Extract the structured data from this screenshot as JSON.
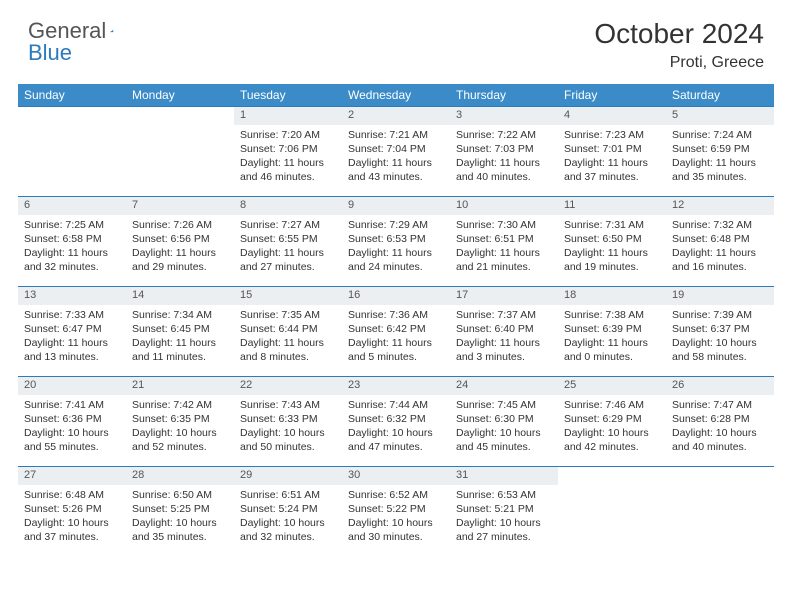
{
  "logo": {
    "general": "General",
    "blue": "Blue"
  },
  "title": "October 2024",
  "location": "Proti, Greece",
  "colors": {
    "header_bg": "#3b8bc8",
    "header_text": "#ffffff",
    "daynum_bg": "#eceff1",
    "daynum_text": "#555555",
    "border": "#2b7bbd",
    "body_text": "#333333",
    "logo_gray": "#555555",
    "logo_blue": "#2b7bbd"
  },
  "weekdays": [
    "Sunday",
    "Monday",
    "Tuesday",
    "Wednesday",
    "Thursday",
    "Friday",
    "Saturday"
  ],
  "weeks": [
    [
      null,
      null,
      {
        "n": "1",
        "sr": "7:20 AM",
        "ss": "7:06 PM",
        "dl": "11 hours and 46 minutes."
      },
      {
        "n": "2",
        "sr": "7:21 AM",
        "ss": "7:04 PM",
        "dl": "11 hours and 43 minutes."
      },
      {
        "n": "3",
        "sr": "7:22 AM",
        "ss": "7:03 PM",
        "dl": "11 hours and 40 minutes."
      },
      {
        "n": "4",
        "sr": "7:23 AM",
        "ss": "7:01 PM",
        "dl": "11 hours and 37 minutes."
      },
      {
        "n": "5",
        "sr": "7:24 AM",
        "ss": "6:59 PM",
        "dl": "11 hours and 35 minutes."
      }
    ],
    [
      {
        "n": "6",
        "sr": "7:25 AM",
        "ss": "6:58 PM",
        "dl": "11 hours and 32 minutes."
      },
      {
        "n": "7",
        "sr": "7:26 AM",
        "ss": "6:56 PM",
        "dl": "11 hours and 29 minutes."
      },
      {
        "n": "8",
        "sr": "7:27 AM",
        "ss": "6:55 PM",
        "dl": "11 hours and 27 minutes."
      },
      {
        "n": "9",
        "sr": "7:29 AM",
        "ss": "6:53 PM",
        "dl": "11 hours and 24 minutes."
      },
      {
        "n": "10",
        "sr": "7:30 AM",
        "ss": "6:51 PM",
        "dl": "11 hours and 21 minutes."
      },
      {
        "n": "11",
        "sr": "7:31 AM",
        "ss": "6:50 PM",
        "dl": "11 hours and 19 minutes."
      },
      {
        "n": "12",
        "sr": "7:32 AM",
        "ss": "6:48 PM",
        "dl": "11 hours and 16 minutes."
      }
    ],
    [
      {
        "n": "13",
        "sr": "7:33 AM",
        "ss": "6:47 PM",
        "dl": "11 hours and 13 minutes."
      },
      {
        "n": "14",
        "sr": "7:34 AM",
        "ss": "6:45 PM",
        "dl": "11 hours and 11 minutes."
      },
      {
        "n": "15",
        "sr": "7:35 AM",
        "ss": "6:44 PM",
        "dl": "11 hours and 8 minutes."
      },
      {
        "n": "16",
        "sr": "7:36 AM",
        "ss": "6:42 PM",
        "dl": "11 hours and 5 minutes."
      },
      {
        "n": "17",
        "sr": "7:37 AM",
        "ss": "6:40 PM",
        "dl": "11 hours and 3 minutes."
      },
      {
        "n": "18",
        "sr": "7:38 AM",
        "ss": "6:39 PM",
        "dl": "11 hours and 0 minutes."
      },
      {
        "n": "19",
        "sr": "7:39 AM",
        "ss": "6:37 PM",
        "dl": "10 hours and 58 minutes."
      }
    ],
    [
      {
        "n": "20",
        "sr": "7:41 AM",
        "ss": "6:36 PM",
        "dl": "10 hours and 55 minutes."
      },
      {
        "n": "21",
        "sr": "7:42 AM",
        "ss": "6:35 PM",
        "dl": "10 hours and 52 minutes."
      },
      {
        "n": "22",
        "sr": "7:43 AM",
        "ss": "6:33 PM",
        "dl": "10 hours and 50 minutes."
      },
      {
        "n": "23",
        "sr": "7:44 AM",
        "ss": "6:32 PM",
        "dl": "10 hours and 47 minutes."
      },
      {
        "n": "24",
        "sr": "7:45 AM",
        "ss": "6:30 PM",
        "dl": "10 hours and 45 minutes."
      },
      {
        "n": "25",
        "sr": "7:46 AM",
        "ss": "6:29 PM",
        "dl": "10 hours and 42 minutes."
      },
      {
        "n": "26",
        "sr": "7:47 AM",
        "ss": "6:28 PM",
        "dl": "10 hours and 40 minutes."
      }
    ],
    [
      {
        "n": "27",
        "sr": "6:48 AM",
        "ss": "5:26 PM",
        "dl": "10 hours and 37 minutes."
      },
      {
        "n": "28",
        "sr": "6:50 AM",
        "ss": "5:25 PM",
        "dl": "10 hours and 35 minutes."
      },
      {
        "n": "29",
        "sr": "6:51 AM",
        "ss": "5:24 PM",
        "dl": "10 hours and 32 minutes."
      },
      {
        "n": "30",
        "sr": "6:52 AM",
        "ss": "5:22 PM",
        "dl": "10 hours and 30 minutes."
      },
      {
        "n": "31",
        "sr": "6:53 AM",
        "ss": "5:21 PM",
        "dl": "10 hours and 27 minutes."
      },
      null,
      null
    ]
  ],
  "labels": {
    "sunrise": "Sunrise:",
    "sunset": "Sunset:",
    "daylight": "Daylight:"
  }
}
